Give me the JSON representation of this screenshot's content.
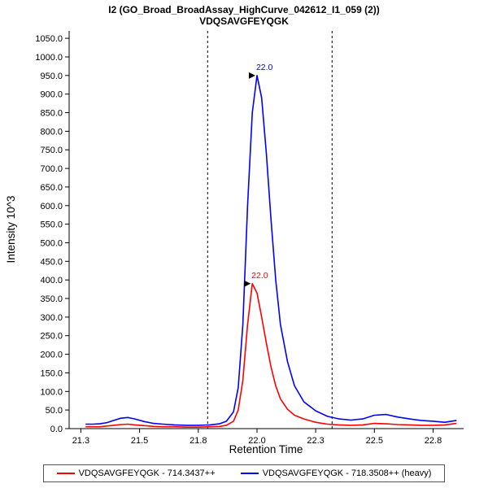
{
  "title": {
    "line1": "I2 (GO_Broad_BroadAssay_HighCurve_042612_I1_059 (2))",
    "line2": "VDQSAVGFEYQGK"
  },
  "axes": {
    "x": {
      "title": "Retention Time",
      "min": 21.2,
      "max": 22.88,
      "ticks": [
        {
          "v": 21.25,
          "label": "21.3"
        },
        {
          "v": 21.5,
          "label": "21.5"
        },
        {
          "v": 21.75,
          "label": "21.8"
        },
        {
          "v": 22.0,
          "label": "22.0"
        },
        {
          "v": 22.25,
          "label": "22.3"
        },
        {
          "v": 22.5,
          "label": "22.5"
        },
        {
          "v": 22.75,
          "label": "22.8"
        }
      ]
    },
    "y": {
      "title": "Intensity 10^3",
      "min": 0,
      "max": 1070,
      "tick_step": 50,
      "tick_labels": [
        "0.0",
        "50.0",
        "100.0",
        "150.0",
        "200.0",
        "250.0",
        "300.0",
        "350.0",
        "400.0",
        "450.0",
        "500.0",
        "550.0",
        "600.0",
        "650.0",
        "700.0",
        "750.0",
        "800.0",
        "850.0",
        "900.0",
        "950.0",
        "1000.0",
        "1050.0"
      ]
    }
  },
  "chart_data": {
    "type": "line",
    "title": "I2 (GO_Broad_BroadAssay_HighCurve_042612_I1_059 (2)) / VDQSAVGFEYQGK",
    "xlabel": "Retention Time",
    "ylabel": "Intensity 10^3",
    "xlim": [
      21.2,
      22.88
    ],
    "ylim": [
      0,
      1070
    ],
    "grid": false,
    "legend_position": "bottom",
    "x": [
      21.27,
      21.3,
      21.33,
      21.36,
      21.39,
      21.42,
      21.45,
      21.48,
      21.52,
      21.56,
      21.6,
      21.65,
      21.7,
      21.75,
      21.8,
      21.84,
      21.87,
      21.9,
      21.92,
      21.94,
      21.96,
      21.98,
      22.0,
      22.02,
      22.04,
      22.06,
      22.08,
      22.1,
      22.13,
      22.16,
      22.2,
      22.25,
      22.3,
      22.35,
      22.4,
      22.45,
      22.5,
      22.55,
      22.6,
      22.65,
      22.7,
      22.75,
      22.8,
      22.85
    ],
    "series": [
      {
        "name": "VDQSAVGFEYQGK - 714.3437++",
        "color": "#ff0000",
        "values": [
          5,
          5,
          5,
          7,
          9,
          11,
          12,
          10,
          8,
          6,
          5,
          5,
          4,
          4,
          5,
          6,
          9,
          20,
          50,
          130,
          280,
          390,
          365,
          300,
          230,
          165,
          115,
          80,
          52,
          36,
          26,
          17,
          12,
          10,
          9,
          10,
          14,
          13,
          11,
          10,
          9,
          9,
          10,
          14
        ]
      },
      {
        "name": "VDQSAVGFEYQGK - 718.3508++ (heavy)",
        "color": "#0000ff",
        "values": [
          12,
          12,
          13,
          16,
          22,
          28,
          30,
          26,
          19,
          14,
          12,
          10,
          9,
          9,
          10,
          13,
          20,
          45,
          110,
          280,
          600,
          850,
          950,
          890,
          740,
          560,
          400,
          280,
          180,
          115,
          72,
          48,
          33,
          26,
          23,
          26,
          36,
          38,
          31,
          26,
          22,
          20,
          17,
          22
        ]
      }
    ],
    "boundaries": [
      21.79,
      22.32
    ],
    "peak_annotations": [
      {
        "text": "22.0",
        "x": 21.98,
        "y": 390,
        "color": "#ff0000"
      },
      {
        "text": "22.0",
        "x": 22.0,
        "y": 950,
        "color": "#0000ff"
      }
    ]
  }
}
